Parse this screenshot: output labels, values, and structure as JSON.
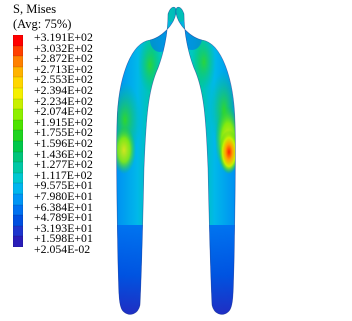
{
  "legend": {
    "title_line1": "S, Mises",
    "title_line2": "(Avg: 75%)",
    "bands": [
      {
        "label": "+3.191E+02",
        "color": "#ff0000"
      },
      {
        "label": "+3.032E+02",
        "color": "#ff4000"
      },
      {
        "label": "+2.872E+02",
        "color": "#ff8000"
      },
      {
        "label": "+2.713E+02",
        "color": "#ffb300"
      },
      {
        "label": "+2.553E+02",
        "color": "#ffd700"
      },
      {
        "label": "+2.394E+02",
        "color": "#f5f000"
      },
      {
        "label": "+2.234E+02",
        "color": "#c8f000"
      },
      {
        "label": "+2.074E+02",
        "color": "#8ef000"
      },
      {
        "label": "+1.915E+02",
        "color": "#4de300"
      },
      {
        "label": "+1.755E+02",
        "color": "#1fd41f"
      },
      {
        "label": "+1.596E+02",
        "color": "#00c84a"
      },
      {
        "label": "+1.436E+02",
        "color": "#00c57a"
      },
      {
        "label": "+1.277E+02",
        "color": "#00c8a5"
      },
      {
        "label": "+1.117E+02",
        "color": "#00c8d0"
      },
      {
        "label": "+9.575E+01",
        "color": "#00b6ee"
      },
      {
        "label": "+7.980E+01",
        "color": "#0095f5"
      },
      {
        "label": "+6.384E+01",
        "color": "#0071f0"
      },
      {
        "label": "+4.789E+01",
        "color": "#004fe0"
      },
      {
        "label": "+3.193E+01",
        "color": "#1e35cd"
      },
      {
        "label": "+1.598E+01",
        "color": "#2a1db8"
      },
      {
        "label": "+2.054E-02",
        "color": null
      }
    ]
  }
}
